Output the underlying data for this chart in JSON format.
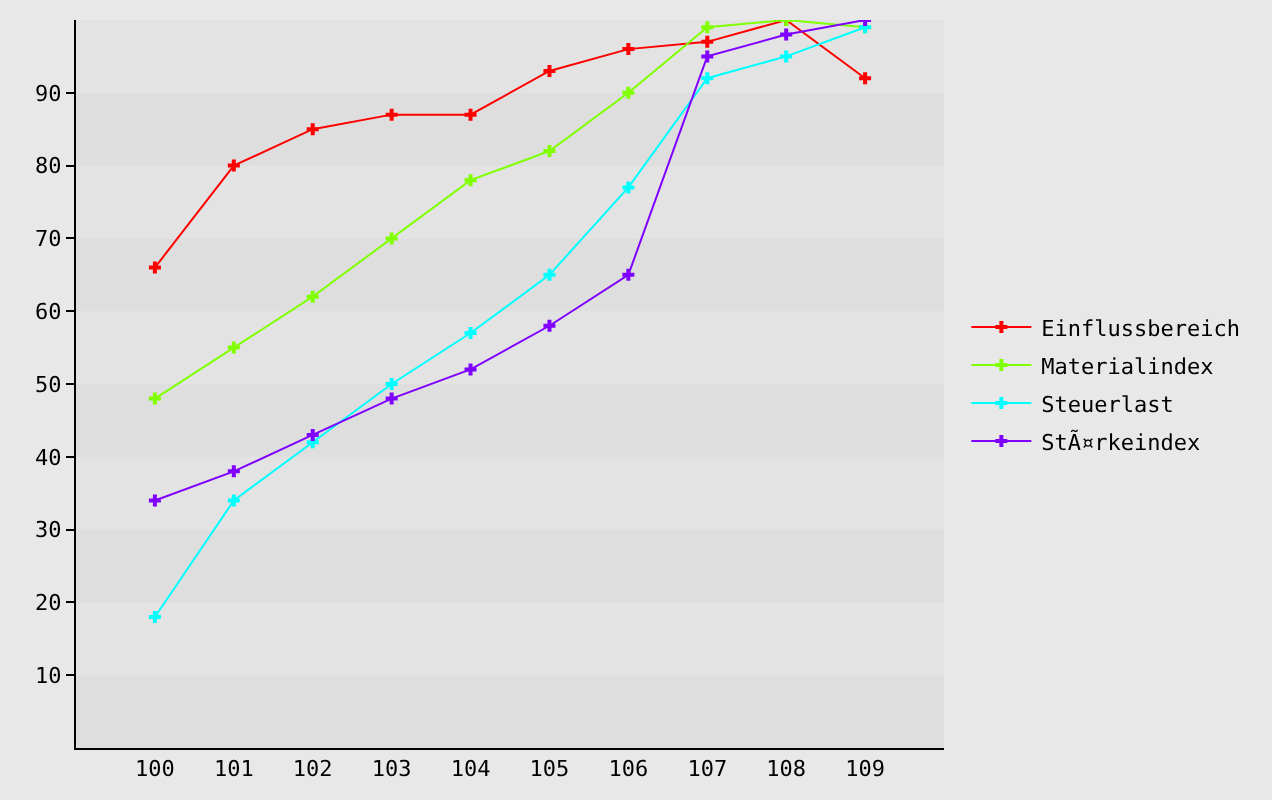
{
  "chart_data": {
    "type": "line",
    "categories": [
      "100",
      "101",
      "102",
      "103",
      "104",
      "105",
      "106",
      "107",
      "108",
      "109"
    ],
    "series": [
      {
        "name": "Einflussbereich",
        "color": "#ff0000",
        "values": [
          66,
          80,
          85,
          87,
          87,
          93,
          96,
          97,
          100,
          92
        ]
      },
      {
        "name": "Materialindex",
        "color": "#80ff00",
        "values": [
          48,
          55,
          62,
          70,
          78,
          82,
          90,
          99,
          100,
          99
        ]
      },
      {
        "name": "Steuerlast",
        "color": "#00ffff",
        "values": [
          18,
          34,
          42,
          50,
          57,
          65,
          77,
          92,
          95,
          99
        ]
      },
      {
        "name": "StÃ¤rkeindex",
        "color": "#8000ff",
        "values": [
          34,
          38,
          43,
          48,
          52,
          58,
          65,
          95,
          98,
          100
        ]
      }
    ],
    "ylim": [
      0,
      100
    ],
    "yticks": [
      10,
      20,
      30,
      40,
      50,
      60,
      70,
      80,
      90
    ],
    "legend": "right",
    "marker": "cross",
    "line_style": "solid"
  }
}
